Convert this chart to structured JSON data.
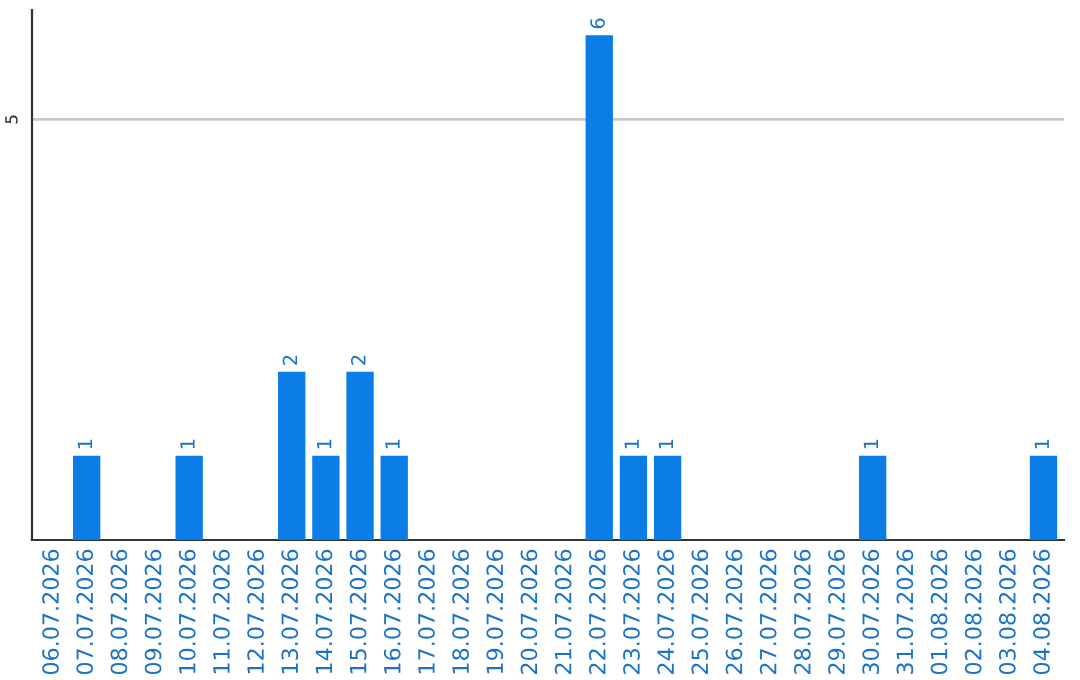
{
  "chart_data": {
    "type": "bar",
    "categories": [
      "06.07.2026",
      "07.07.2026",
      "08.07.2026",
      "09.07.2026",
      "10.07.2026",
      "11.07.2026",
      "12.07.2026",
      "13.07.2026",
      "14.07.2026",
      "15.07.2026",
      "16.07.2026",
      "17.07.2026",
      "18.07.2026",
      "19.07.2026",
      "20.07.2026",
      "21.07.2026",
      "22.07.2026",
      "23.07.2026",
      "24.07.2026",
      "25.07.2026",
      "26.07.2026",
      "27.07.2026",
      "28.07.2026",
      "29.07.2026",
      "30.07.2026",
      "31.07.2026",
      "01.08.2026",
      "02.08.2026",
      "03.08.2026",
      "04.08.2026"
    ],
    "values": [
      0,
      1,
      0,
      0,
      1,
      0,
      0,
      2,
      1,
      2,
      1,
      0,
      0,
      0,
      0,
      0,
      6,
      1,
      1,
      0,
      0,
      0,
      0,
      0,
      1,
      0,
      0,
      0,
      0,
      1
    ],
    "value_labels": [
      null,
      "1",
      null,
      null,
      "1",
      null,
      null,
      "2",
      "1",
      "2",
      "1",
      null,
      null,
      null,
      null,
      null,
      "6",
      "1",
      "1",
      null,
      null,
      null,
      null,
      null,
      "1",
      null,
      null,
      null,
      null,
      "1"
    ],
    "color": "#0a7de6",
    "ylim": [
      0,
      6.3
    ],
    "yticks": [
      5
    ],
    "grid": "y",
    "legend": false
  }
}
